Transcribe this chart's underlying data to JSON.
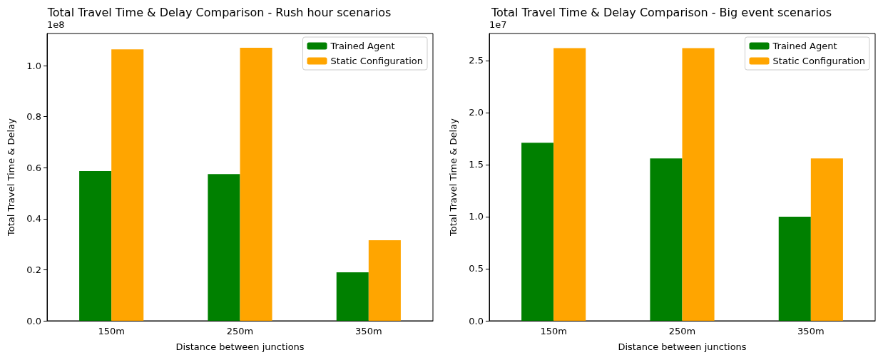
{
  "chart_data": [
    {
      "type": "bar",
      "title": "Total Travel Time & Delay Comparison - Rush hour scenarios",
      "xlabel": "Distance between junctions",
      "ylabel": "Total Travel Time & Delay",
      "categories": [
        "150m",
        "250m",
        "350m"
      ],
      "series": [
        {
          "name": "Trained Agent",
          "color": "#008000",
          "values": [
            0.587,
            0.575,
            0.19
          ]
        },
        {
          "name": "Static Configuration",
          "color": "#ffa500",
          "values": [
            1.064,
            1.07,
            0.316
          ]
        }
      ],
      "ylim": [
        0,
        1.126
      ],
      "yticks": [
        {
          "value": 0,
          "label": "0.0"
        },
        {
          "value": 0.2,
          "label": "0.2"
        },
        {
          "value": 0.4,
          "label": "0.4"
        },
        {
          "value": 0.6,
          "label": "0.6"
        },
        {
          "value": 0.8,
          "label": "0.8"
        },
        {
          "value": 1,
          "label": "1.0"
        }
      ],
      "annotations": [
        "1e8"
      ],
      "legend": "top right",
      "grid": false
    },
    {
      "type": "bar",
      "title": "Total Travel Time & Delay Comparison - Big event scenarios",
      "xlabel": "Distance between junctions",
      "ylabel": "Total Travel Time & Delay",
      "categories": [
        "150m",
        "250m",
        "350m"
      ],
      "series": [
        {
          "name": "Trained Agent",
          "color": "#008000",
          "values": [
            1.71,
            1.56,
            1.0
          ]
        },
        {
          "name": "Static Configuration",
          "color": "#ffa500",
          "values": [
            2.62,
            2.62,
            1.56
          ]
        }
      ],
      "ylim": [
        0,
        2.76
      ],
      "yticks": [
        {
          "value": 0,
          "label": "0.0"
        },
        {
          "value": 0.5,
          "label": "0.5"
        },
        {
          "value": 1,
          "label": "1.0"
        },
        {
          "value": 1.5,
          "label": "1.5"
        },
        {
          "value": 2,
          "label": "2.0"
        },
        {
          "value": 2.5,
          "label": "2.5"
        }
      ],
      "annotations": [
        "1e7"
      ],
      "legend": "top right",
      "grid": false
    }
  ]
}
